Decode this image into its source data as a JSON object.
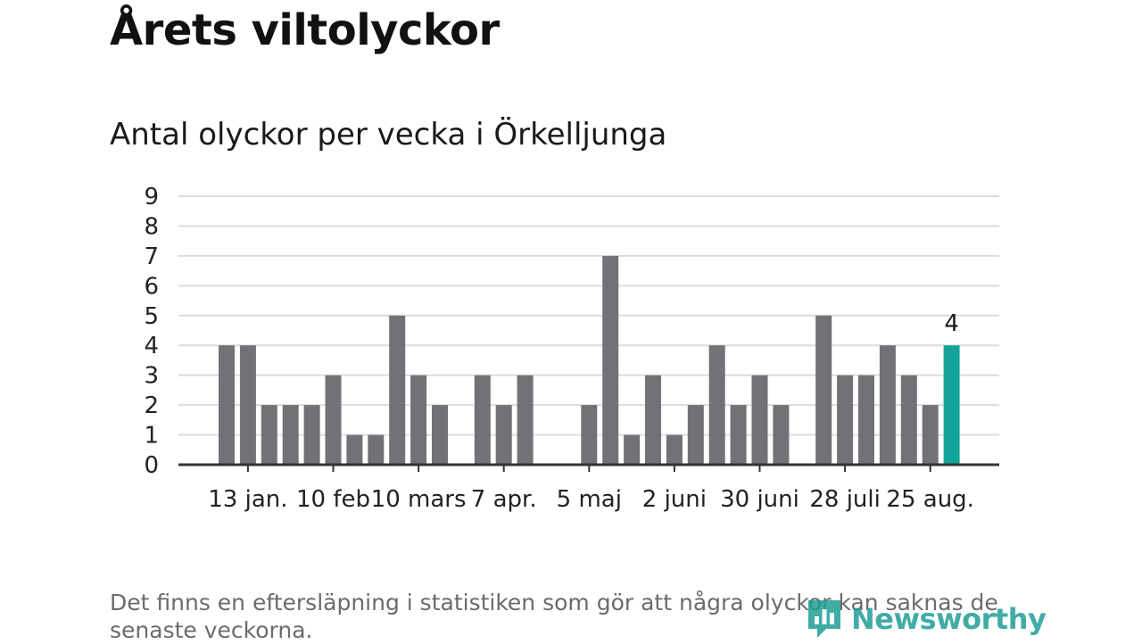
{
  "title": "Årets viltolyckor",
  "subtitle": "Antal olyckor per vecka i Örkelljunga",
  "footnote": "Det finns en eftersläpning i statistiken som gör att några olyckor kan saknas de senaste veckorna.",
  "brand": {
    "name": "Newsworthy",
    "icon": "newsworthy-logo-icon",
    "color": "#1e9e96"
  },
  "chart_data": {
    "type": "bar",
    "title": "Antal olyckor per vecka i Örkelljunga",
    "xlabel": "",
    "ylabel": "",
    "ylim": [
      0,
      9
    ],
    "yticks": [
      0,
      1,
      2,
      3,
      4,
      5,
      6,
      7,
      8,
      9
    ],
    "grid": true,
    "weeks": [
      1,
      2,
      3,
      4,
      5,
      6,
      7,
      8,
      9,
      10,
      11,
      12,
      13,
      14,
      15,
      16,
      17,
      18,
      19,
      20,
      21,
      22,
      23,
      24,
      25,
      26,
      27,
      28,
      29,
      30,
      31,
      32,
      33,
      34,
      35
    ],
    "values": [
      4,
      4,
      2,
      2,
      2,
      3,
      1,
      1,
      5,
      3,
      2,
      0,
      3,
      2,
      3,
      0,
      0,
      2,
      7,
      1,
      3,
      1,
      2,
      4,
      2,
      3,
      2,
      0,
      5,
      3,
      3,
      4,
      3,
      2,
      4
    ],
    "x_tick_labels": [
      {
        "week": 2,
        "label": "13 jan."
      },
      {
        "week": 6,
        "label": "10 feb"
      },
      {
        "week": 10,
        "label": "10 mars"
      },
      {
        "week": 14,
        "label": "7 apr."
      },
      {
        "week": 18,
        "label": "5 maj"
      },
      {
        "week": 22,
        "label": "2 juni"
      },
      {
        "week": 26,
        "label": "30 juni"
      },
      {
        "week": 30,
        "label": "28 juli"
      },
      {
        "week": 34,
        "label": "25 aug."
      }
    ],
    "highlight": {
      "week": 35,
      "value": 4,
      "label": "4"
    },
    "colors": {
      "bar": "#727176",
      "highlight": "#13a39a",
      "grid": "#dcdcdc",
      "axis": "#333333"
    }
  }
}
